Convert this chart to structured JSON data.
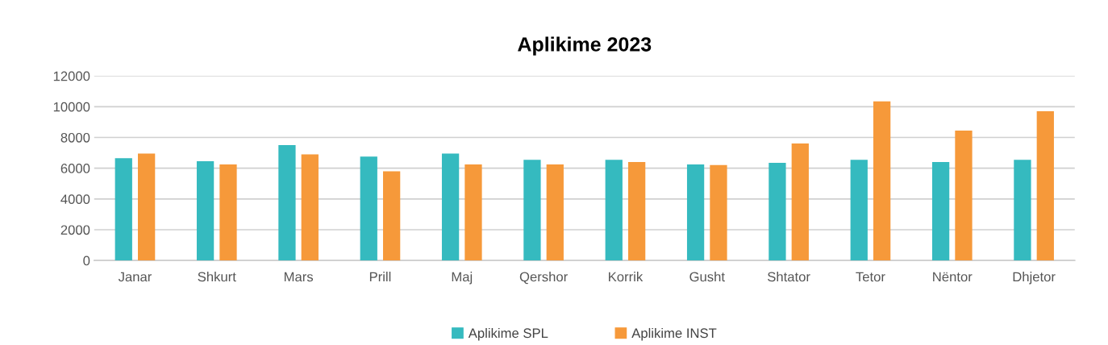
{
  "chart_data": {
    "type": "bar",
    "title": "Aplikime 2023",
    "categories": [
      "Janar",
      "Shkurt",
      "Mars",
      "Prill",
      "Maj",
      "Qershor",
      "Korrik",
      "Gusht",
      "Shtator",
      "Tetor",
      "Nëntor",
      "Dhjetor"
    ],
    "series": [
      {
        "name": "Aplikime SPL",
        "color": "#35babf",
        "values": [
          6650,
          6450,
          7500,
          6750,
          6950,
          6550,
          6550,
          6250,
          6350,
          6550,
          6400,
          6550
        ]
      },
      {
        "name": "Aplikime INST",
        "color": "#f6993a",
        "values": [
          6950,
          6250,
          6900,
          5800,
          6250,
          6250,
          6400,
          6200,
          7600,
          10350,
          8450,
          9700
        ]
      }
    ],
    "ylim": [
      0,
      12000
    ],
    "yticks": [
      0,
      2000,
      4000,
      6000,
      8000,
      10000,
      12000
    ],
    "grid": "y",
    "legend": "bottom"
  }
}
